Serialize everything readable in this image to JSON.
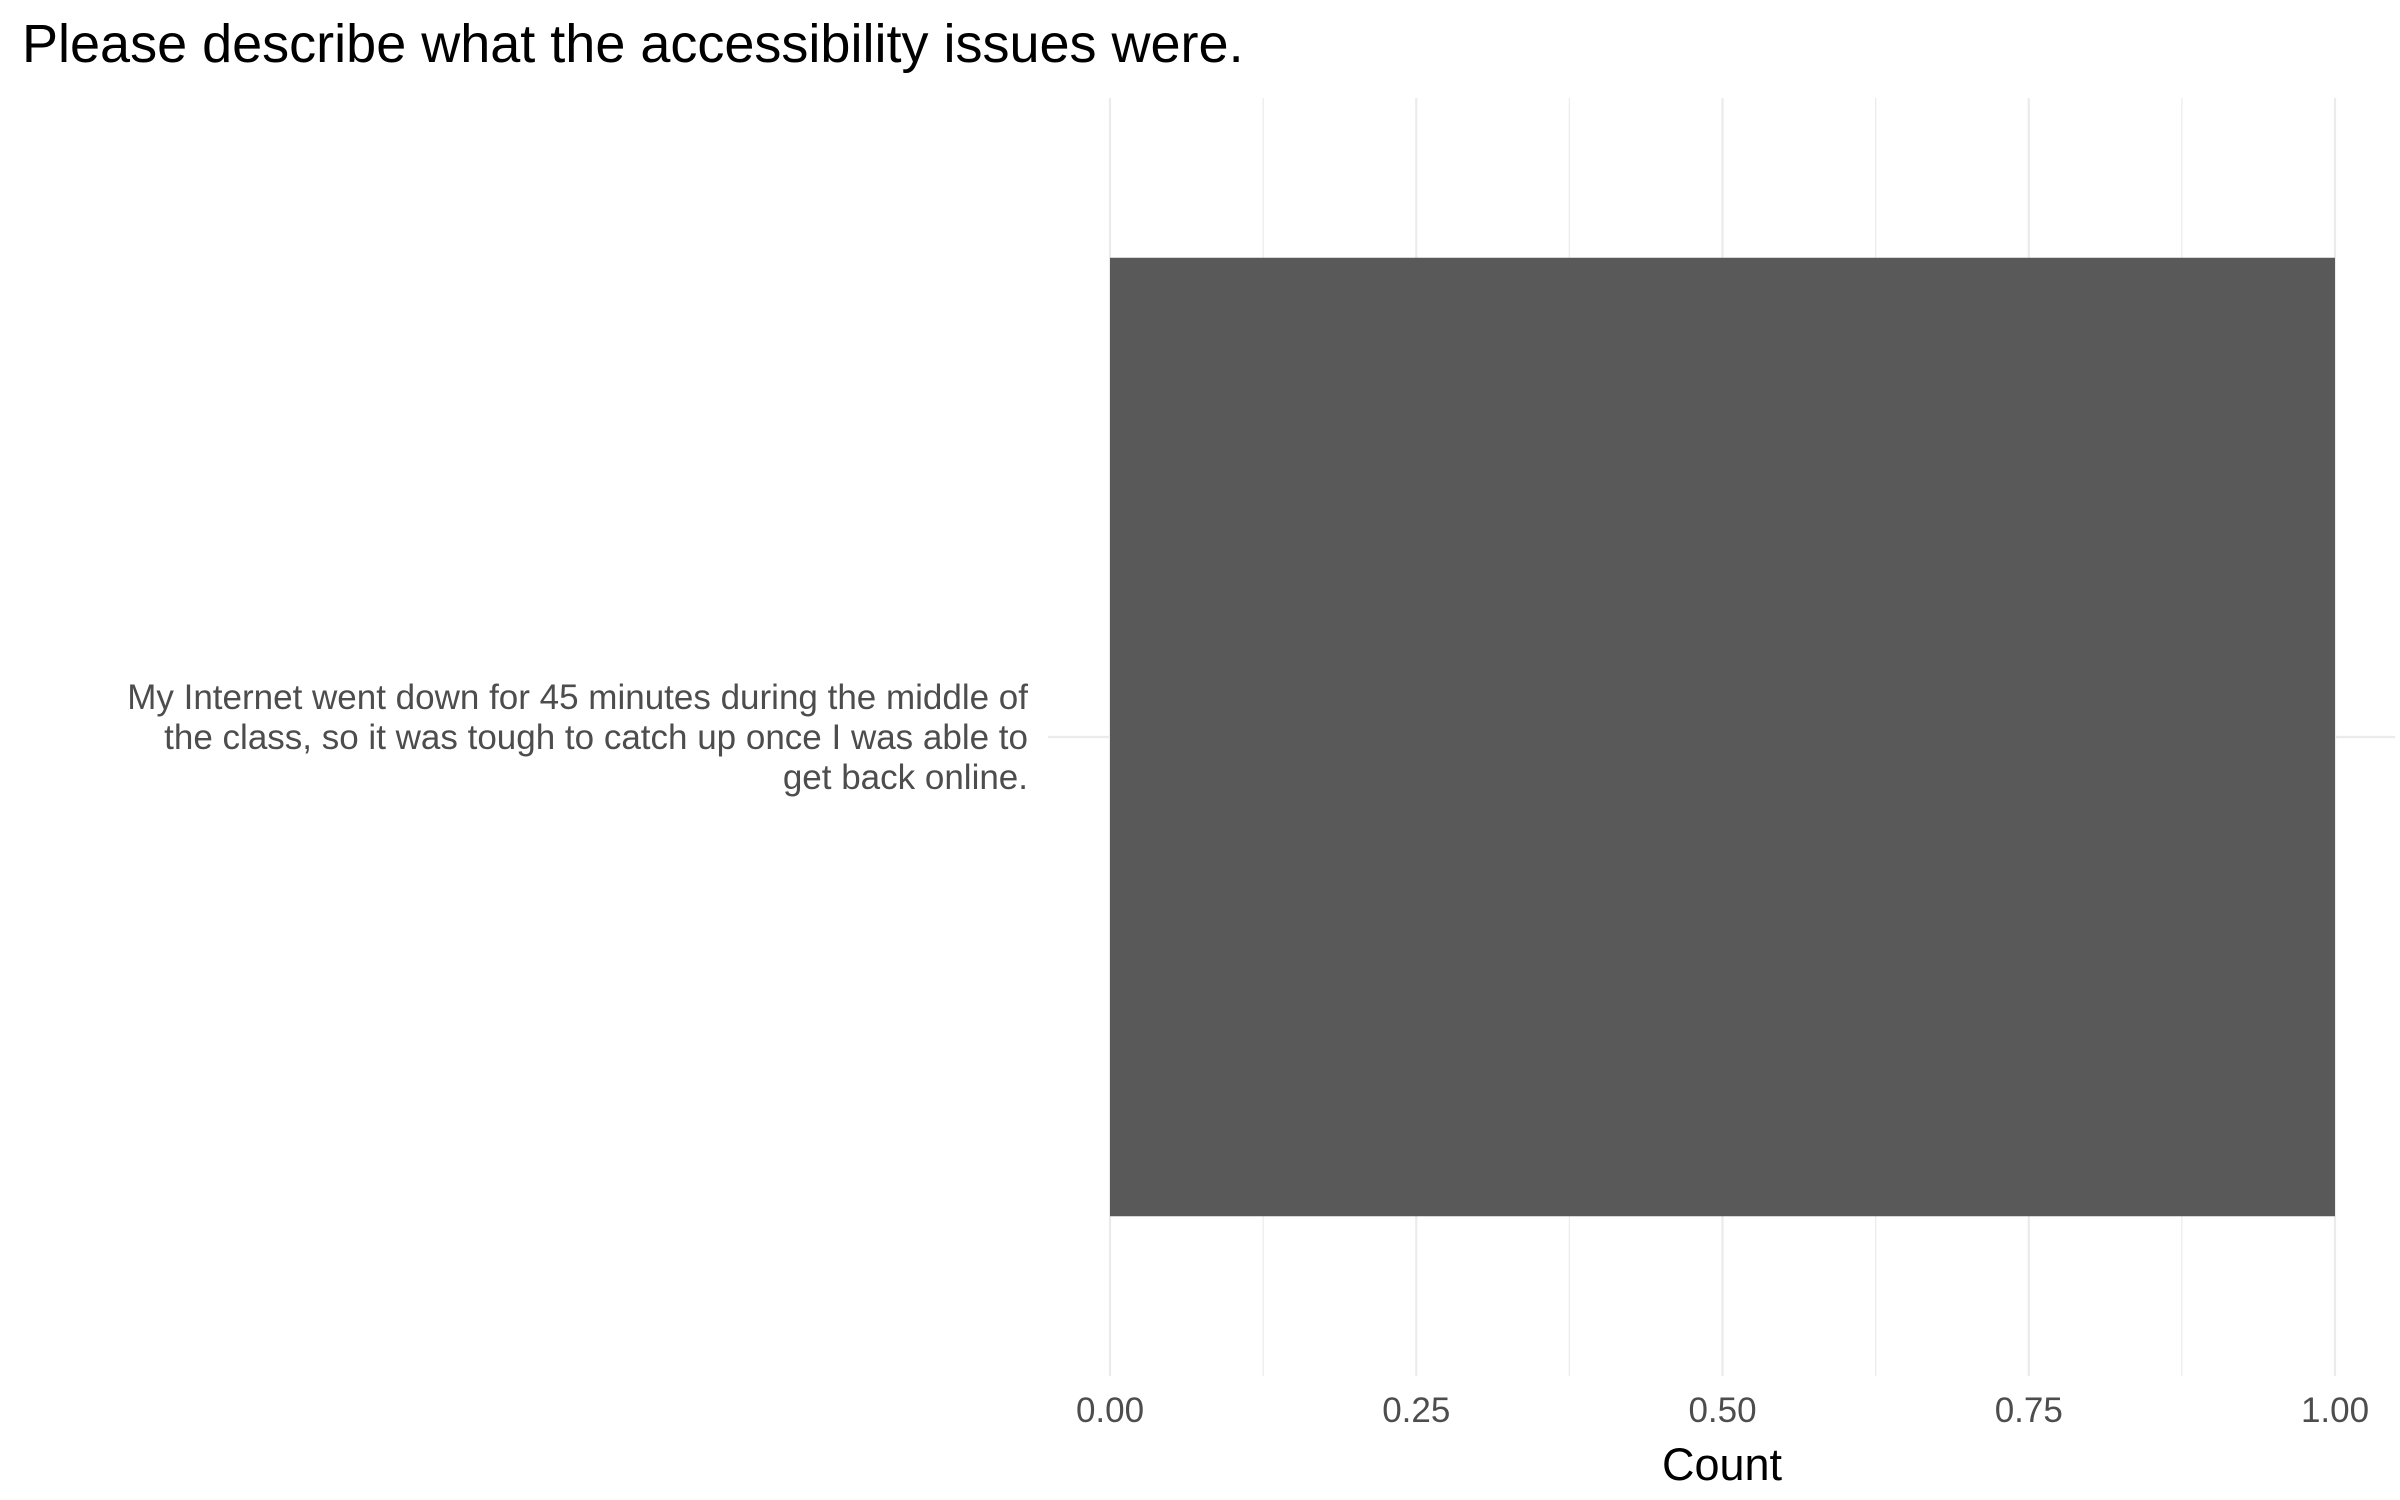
{
  "chart_data": {
    "type": "bar",
    "orientation": "horizontal",
    "title": "Please describe what the accessibility issues were.",
    "categories": [
      "My Internet went down for 45 minutes during the middle of the class, so it was tough to catch up once I was able to get back online."
    ],
    "category_label_lines": [
      [
        "My Internet went down for 45 minutes during the middle of",
        "the class, so it was tough to catch up once I was able to",
        "get back online."
      ]
    ],
    "values": [
      1
    ],
    "xlabel": "Count",
    "ylabel": "",
    "xlim": [
      0,
      1
    ],
    "x_ticks": [
      "0.00",
      "0.25",
      "0.50",
      "0.75",
      "1.00"
    ],
    "x_tick_values": [
      0,
      0.25,
      0.5,
      0.75,
      1.0
    ],
    "grid": true,
    "legend": "none",
    "bar_color": "#595959",
    "grid_color": "#ebebeb"
  }
}
